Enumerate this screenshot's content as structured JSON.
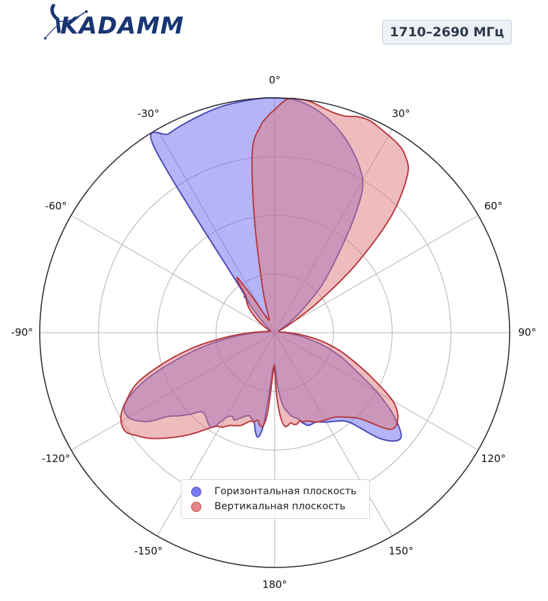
{
  "brand": {
    "logo_text": "KADAMM",
    "logo_color": "#1a3672"
  },
  "frequency_badge": "1710–2690 МГц",
  "chart_data": {
    "type": "polar-area",
    "theta_zero": "top",
    "theta_direction": "clockwise",
    "radial_range": [
      0,
      1
    ],
    "radial_grid": [
      0.25,
      0.5,
      0.75,
      1.0
    ],
    "angular_ticks": [
      0,
      30,
      60,
      90,
      120,
      150,
      180,
      -150,
      -120,
      -90,
      -60,
      -30
    ],
    "angular_tick_labels": [
      "0°",
      "30°",
      "60°",
      "90°",
      "120°",
      "150°",
      "180°",
      "-150°",
      "-120°",
      "-90°",
      "-60°",
      "-30°"
    ],
    "grid": true,
    "legend_position": "bottom-center",
    "series": [
      {
        "name": "Горизонтальная плоскость",
        "color": "#6a6aee",
        "edge_color": "#4a48b8",
        "theta": [
          -38,
          -33,
          -28,
          -23,
          -18,
          -13,
          -8,
          -3,
          0,
          5,
          10,
          15,
          20,
          25,
          28,
          30,
          32,
          34,
          36,
          40,
          45,
          50,
          55,
          60,
          65,
          70,
          75,
          80,
          85,
          90,
          95,
          100,
          105,
          110,
          115,
          120,
          125,
          130,
          135,
          140,
          145,
          150,
          155,
          160,
          163,
          165,
          167,
          169,
          171,
          173,
          175,
          177,
          179,
          180,
          -179,
          -177,
          -175,
          -173,
          -171,
          -169,
          -167,
          -165,
          -163,
          -160,
          -157,
          -155,
          -153,
          -150,
          -147,
          -144,
          -140,
          -137,
          -134,
          -131,
          -128,
          -125,
          -120,
          -115,
          -110,
          -105,
          -100,
          -95,
          -90,
          -85,
          -80,
          -75,
          -70,
          -65,
          -60,
          -55,
          -50,
          -45,
          -40
        ],
        "r": [
          0.22,
          0.94,
          0.96,
          0.97,
          0.98,
          0.99,
          0.995,
          1.0,
          1.0,
          0.995,
          0.97,
          0.93,
          0.88,
          0.82,
          0.78,
          0.75,
          0.7,
          0.62,
          0.54,
          0.4,
          0.28,
          0.16,
          0.08,
          0.03,
          0.02,
          0.02,
          0.02,
          0.02,
          0.02,
          0.04,
          0.08,
          0.14,
          0.22,
          0.3,
          0.38,
          0.5,
          0.62,
          0.7,
          0.64,
          0.5,
          0.46,
          0.44,
          0.42,
          0.42,
          0.4,
          0.38,
          0.37,
          0.36,
          0.34,
          0.32,
          0.28,
          0.22,
          0.15,
          0.14,
          0.14,
          0.16,
          0.25,
          0.4,
          0.45,
          0.43,
          0.39,
          0.38,
          0.37,
          0.38,
          0.4,
          0.41,
          0.4,
          0.42,
          0.48,
          0.48,
          0.46,
          0.46,
          0.5,
          0.54,
          0.58,
          0.66,
          0.72,
          0.7,
          0.58,
          0.42,
          0.28,
          0.16,
          0.08,
          0.04,
          0.03,
          0.02,
          0.02,
          0.02,
          0.02,
          0.03,
          0.05,
          0.1,
          0.2
        ]
      },
      {
        "name": "Вертикальная плоскость",
        "color": "#e07a7e",
        "edge_color": "#b8383e",
        "theta": [
          -38,
          -36,
          -34,
          -32,
          -30,
          -25,
          -20,
          -15,
          -10,
          -7,
          -4,
          -2,
          0,
          3,
          6,
          9,
          12,
          15,
          18,
          21,
          24,
          27,
          30,
          33,
          36,
          40,
          45,
          50,
          55,
          60,
          65,
          70,
          75,
          80,
          85,
          90,
          95,
          100,
          105,
          110,
          115,
          120,
          125,
          130,
          135,
          140,
          145,
          150,
          155,
          160,
          162,
          164,
          166,
          168,
          170,
          172,
          174,
          176,
          178,
          180,
          -179,
          -177,
          -175,
          -173,
          -171,
          -169,
          -167,
          -165,
          -163,
          -160,
          -157,
          -154,
          -151,
          -148,
          -145,
          -142,
          -139,
          -136,
          -133,
          -130,
          -127,
          -124,
          -121,
          -118,
          -115,
          -110,
          -105,
          -100,
          -95,
          -90,
          -85,
          -80,
          -75,
          -70,
          -65,
          -60,
          -55,
          -50,
          -45,
          -40
        ],
        "r": [
          0.2,
          0.26,
          0.28,
          0.18,
          0.1,
          0.06,
          0.08,
          0.2,
          0.5,
          0.78,
          0.88,
          0.92,
          0.95,
          0.995,
          1.0,
          0.995,
          0.98,
          0.97,
          0.97,
          0.985,
          0.99,
          0.98,
          0.97,
          0.96,
          0.94,
          0.88,
          0.7,
          0.45,
          0.22,
          0.08,
          0.03,
          0.02,
          0.02,
          0.02,
          0.03,
          0.06,
          0.12,
          0.2,
          0.28,
          0.36,
          0.46,
          0.58,
          0.64,
          0.64,
          0.52,
          0.47,
          0.44,
          0.43,
          0.42,
          0.4,
          0.4,
          0.39,
          0.4,
          0.4,
          0.39,
          0.4,
          0.4,
          0.36,
          0.28,
          0.16,
          0.14,
          0.2,
          0.34,
          0.4,
          0.4,
          0.38,
          0.39,
          0.39,
          0.4,
          0.42,
          0.43,
          0.44,
          0.46,
          0.47,
          0.5,
          0.54,
          0.58,
          0.62,
          0.66,
          0.7,
          0.73,
          0.76,
          0.76,
          0.74,
          0.7,
          0.62,
          0.48,
          0.34,
          0.2,
          0.1,
          0.05,
          0.03,
          0.02,
          0.02,
          0.03,
          0.05,
          0.08,
          0.12,
          0.16,
          0.19
        ]
      }
    ]
  }
}
